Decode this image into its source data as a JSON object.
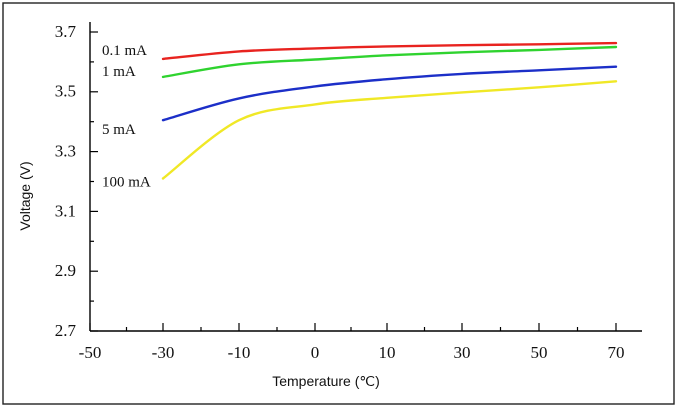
{
  "chart_data": {
    "type": "line",
    "title": "",
    "xlabel": "Temperature (℃)",
    "ylabel": "Voltage (V)",
    "x_tick_labels": [
      "-50",
      "-30",
      "-10",
      "0",
      "10",
      "30",
      "50",
      "70"
    ],
    "y_ticks": [
      2.7,
      2.9,
      3.1,
      3.3,
      3.5,
      3.7
    ],
    "y_tick_labels": [
      "2.7",
      "2.9",
      "3.1",
      "3.3",
      "3.5",
      "3.7"
    ],
    "ylim": [
      2.7,
      3.7
    ],
    "grid": false,
    "series": [
      {
        "name": "0.1 mA",
        "color": "#e8231f",
        "points": [
          {
            "x": "-30",
            "y": 3.61
          },
          {
            "x": "-10",
            "y": 3.635
          },
          {
            "x": "0",
            "y": 3.645
          },
          {
            "x": "10",
            "y": 3.652
          },
          {
            "x": "30",
            "y": 3.656
          },
          {
            "x": "50",
            "y": 3.659
          },
          {
            "x": "70",
            "y": 3.663
          }
        ]
      },
      {
        "name": "1 mA",
        "color": "#2fd32f",
        "points": [
          {
            "x": "-30",
            "y": 3.55
          },
          {
            "x": "-10",
            "y": 3.592
          },
          {
            "x": "0",
            "y": 3.608
          },
          {
            "x": "10",
            "y": 3.622
          },
          {
            "x": "30",
            "y": 3.632
          },
          {
            "x": "50",
            "y": 3.64
          },
          {
            "x": "70",
            "y": 3.65
          }
        ]
      },
      {
        "name": "5 mA",
        "color": "#1c2fc8",
        "points": [
          {
            "x": "-30",
            "y": 3.405
          },
          {
            "x": "-10",
            "y": 3.478
          },
          {
            "x": "0",
            "y": 3.518
          },
          {
            "x": "10",
            "y": 3.542
          },
          {
            "x": "30",
            "y": 3.56
          },
          {
            "x": "50",
            "y": 3.572
          },
          {
            "x": "70",
            "y": 3.584
          }
        ]
      },
      {
        "name": "100 mA",
        "color": "#f0e826",
        "points": [
          {
            "x": "-30",
            "y": 3.21
          },
          {
            "x": "-10",
            "y": 3.405
          },
          {
            "x": "0",
            "y": 3.458
          },
          {
            "x": "10",
            "y": 3.48
          },
          {
            "x": "30",
            "y": 3.498
          },
          {
            "x": "50",
            "y": 3.515
          },
          {
            "x": "70",
            "y": 3.535
          }
        ]
      }
    ]
  }
}
